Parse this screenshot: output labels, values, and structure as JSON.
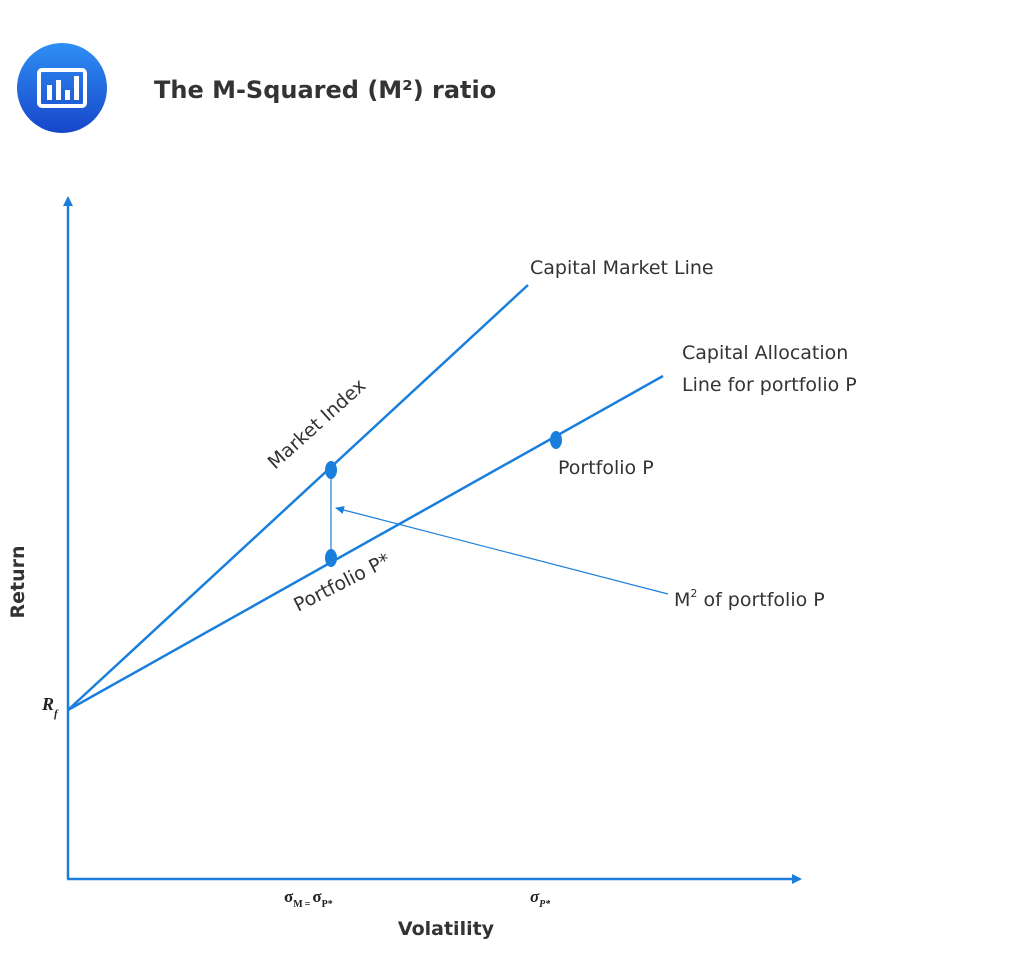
{
  "header": {
    "title": "The M-Squared (M²) ratio"
  },
  "axes": {
    "y_label": "Return",
    "x_label": "Volatility",
    "y_marker": {
      "main": "R",
      "sub": "f"
    },
    "x_markers": [
      {
        "left_main": "σ",
        "left_sub": "M",
        "equals": "=",
        "right_main": "σ",
        "right_sub": "P*"
      },
      {
        "main": "σ",
        "sub": "P*"
      }
    ]
  },
  "lines": {
    "cml": "Capital Market Line",
    "cal": [
      "Capital Allocation",
      "Line for portfolio P"
    ]
  },
  "points": {
    "market_index": "Market Index",
    "portfolio_p": "Portfolio P",
    "portfolio_p_star": "Portfolio P*"
  },
  "annotation": {
    "main": "M",
    "sup": "2",
    "rest": " of portfolio P"
  }
}
